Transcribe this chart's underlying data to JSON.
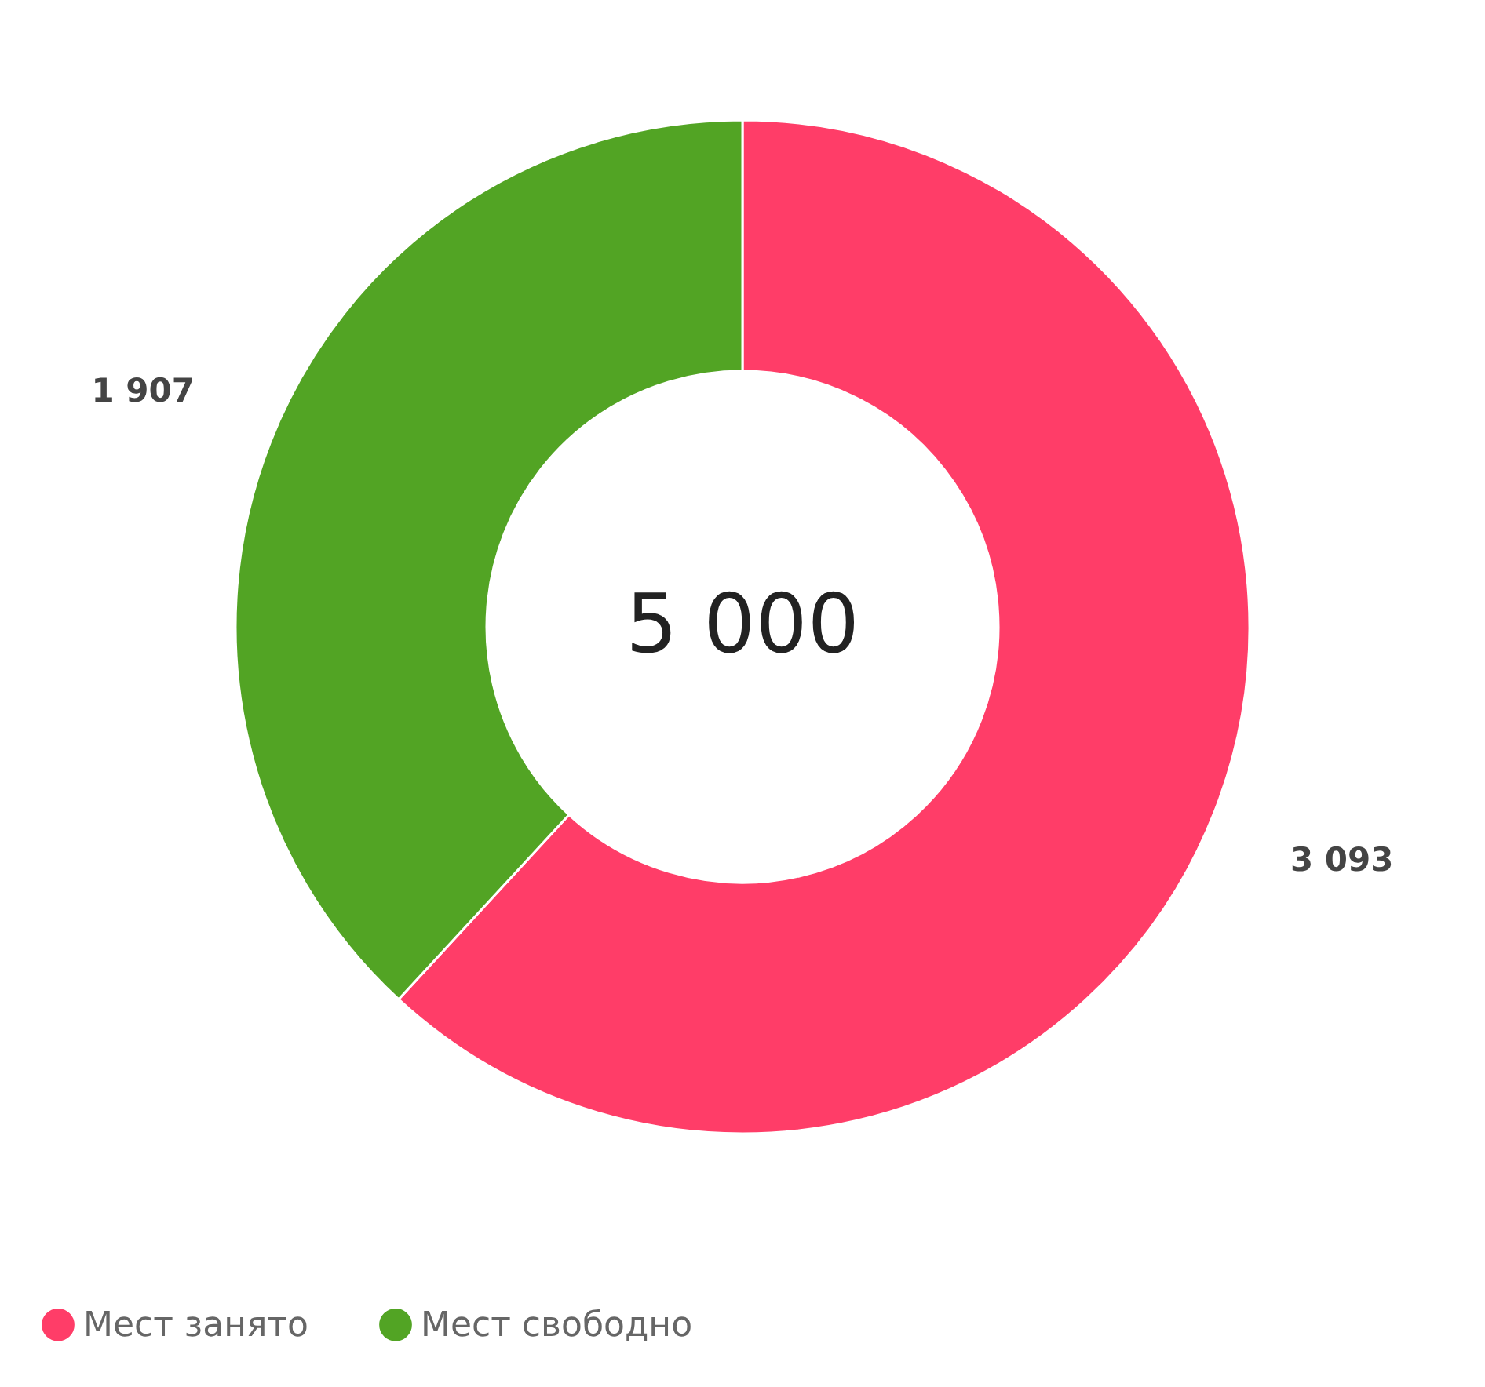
{
  "chart_data": {
    "type": "donut",
    "categories": [
      "Мест занято",
      "Мест свободно"
    ],
    "values": [
      3093,
      1907
    ],
    "colors": [
      "#ff3d68",
      "#52a424"
    ],
    "value_labels": [
      "3 093",
      "1 907"
    ],
    "annotations": [
      "5 000"
    ],
    "legend": "bottom"
  }
}
